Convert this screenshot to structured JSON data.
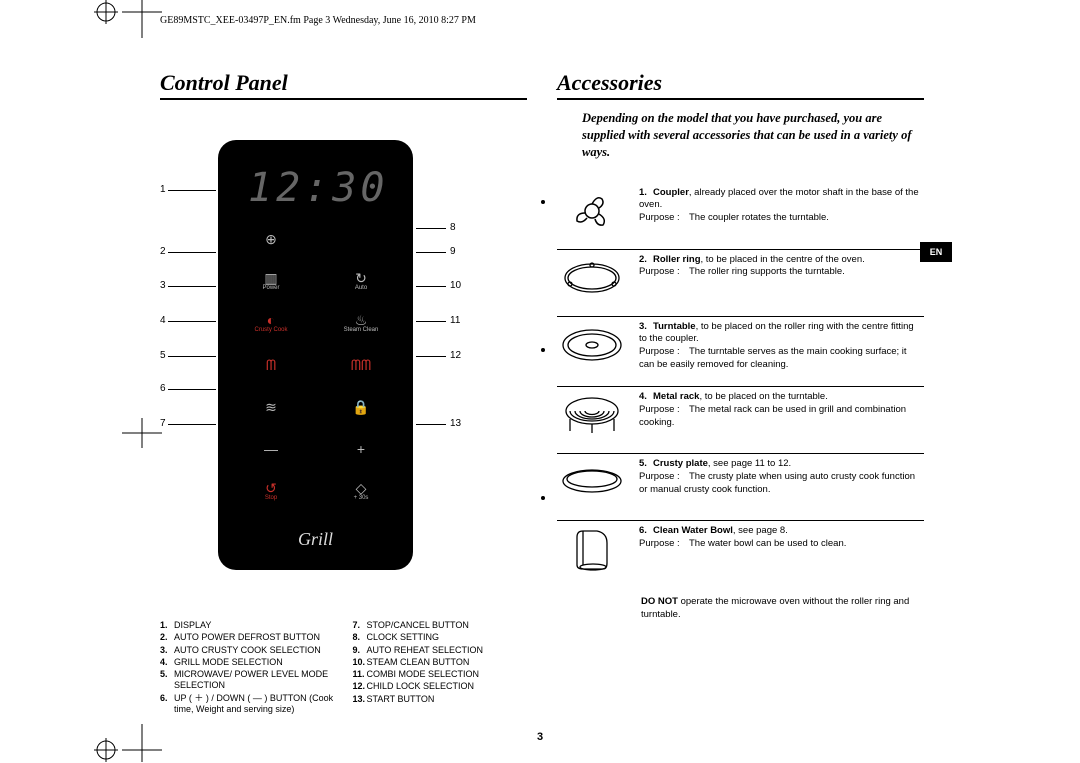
{
  "header": "GE89MSTC_XEE-03497P_EN.fm  Page 3  Wednesday, June 16, 2010  8:27 PM",
  "page_number": "3",
  "en_tab": "EN",
  "left": {
    "title": "Control Panel",
    "display": "12:30",
    "grill_label": "Grill",
    "buttons": [
      {
        "icon": "⊕",
        "label": "",
        "color": "grey"
      },
      {
        "icon": "",
        "label": "",
        "color": "grey"
      },
      {
        "icon": "▥",
        "label": "Power",
        "color": "grey"
      },
      {
        "icon": "↻",
        "label": "Auto",
        "color": "grey"
      },
      {
        "icon": "◐",
        "label": "Crusty Cook",
        "color": "red"
      },
      {
        "icon": "♨",
        "label": "Steam Clean",
        "color": "grey"
      },
      {
        "icon": "ᗰ",
        "label": "",
        "color": "red"
      },
      {
        "icon": "ᗰᗰ",
        "label": "",
        "color": "red"
      },
      {
        "icon": "≋",
        "label": "",
        "color": "grey"
      },
      {
        "icon": "🔒",
        "label": "",
        "color": "grey"
      },
      {
        "icon": "—",
        "label": "",
        "color": "grey"
      },
      {
        "icon": "+",
        "label": "",
        "color": "grey"
      },
      {
        "icon": "↺",
        "label": "Stop",
        "color": "red"
      },
      {
        "icon": "◇",
        "label": "+ 30s",
        "color": "grey"
      }
    ],
    "callouts_left": [
      "1",
      "2",
      "3",
      "4",
      "5",
      "6",
      "7"
    ],
    "callouts_right": [
      "8",
      "9",
      "10",
      "11",
      "12",
      "13"
    ],
    "legend_left": [
      {
        "n": "1.",
        "t": "DISPLAY"
      },
      {
        "n": "2.",
        "t": "AUTO  POWER DEFROST BUTTON"
      },
      {
        "n": "3.",
        "t": "AUTO CRUSTY COOK SELECTION"
      },
      {
        "n": "4.",
        "t": "GRILL MODE SELECTION"
      },
      {
        "n": "5.",
        "t": "MICROWAVE/ POWER LEVEL MODE SELECTION"
      },
      {
        "n": "6.",
        "t": "UP  ( ＋ ) / DOWN ( — ) BUTTON (Cook time, Weight and serving size)"
      }
    ],
    "legend_right": [
      {
        "n": "7.",
        "t": "STOP/CANCEL BUTTON"
      },
      {
        "n": "8.",
        "t": "CLOCK SETTING"
      },
      {
        "n": "9.",
        "t": "AUTO REHEAT SELECTION"
      },
      {
        "n": "10.",
        "t": "STEAM CLEAN BUTTON"
      },
      {
        "n": "11.",
        "t": "COMBI MODE SELECTION"
      },
      {
        "n": "12.",
        "t": "CHILD LOCK SELECTION"
      },
      {
        "n": "13.",
        "t": "START BUTTON"
      }
    ]
  },
  "right": {
    "title": "Accessories",
    "intro": "Depending on the model that you have purchased, you are supplied with several accessories that can be used in a variety of ways.",
    "items": [
      {
        "n": "1.",
        "name": "Coupler",
        "rest": ", already placed over the motor shaft in the base of the oven.",
        "purpose": "The coupler rotates the turntable."
      },
      {
        "n": "2.",
        "name": "Roller ring",
        "rest": ", to be placed in the centre of the oven.",
        "purpose": "The roller ring supports the turntable."
      },
      {
        "n": "3.",
        "name": "Turntable",
        "rest": ", to be placed on the roller ring with the centre fitting  to the coupler.",
        "purpose": "The turntable serves as the main cooking surface; it can be easily removed for cleaning."
      },
      {
        "n": "4.",
        "name": "Metal rack",
        "rest": ", to be placed on the turntable.",
        "purpose": "The metal rack can be used in grill and combination cooking."
      },
      {
        "n": "5.",
        "name": "Crusty plate",
        "rest": ", see page 11 to 12.",
        "purpose": "The crusty plate when using auto crusty cook function or manual crusty cook function."
      },
      {
        "n": "6.",
        "name": "Clean Water Bowl",
        "rest": ", see page 8.",
        "purpose": "The water bowl can be used to clean."
      }
    ],
    "purpose_label": "Purpose :",
    "donot_bold": "DO NOT",
    "donot_rest": " operate the microwave oven without the roller ring and turntable."
  }
}
